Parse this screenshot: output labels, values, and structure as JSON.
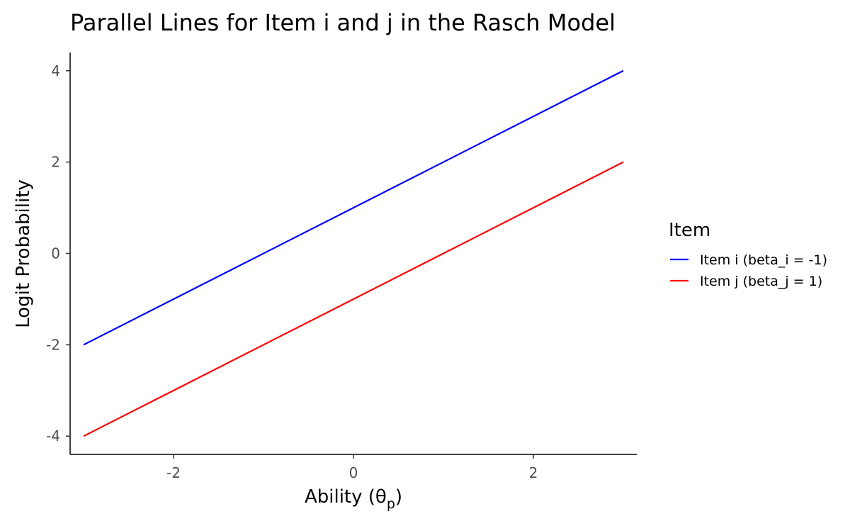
{
  "chart_data": {
    "type": "line",
    "title": "Parallel Lines for Item i and j in the Rasch Model",
    "xlabel": "Ability (θ",
    "xlabel_subscript": "p",
    "xlabel_close": ")",
    "ylabel": "Logit Probability",
    "xlim": [
      -3.15,
      3.15
    ],
    "ylim": [
      -4.4,
      4.4
    ],
    "x_ticks": [
      -2,
      0,
      2
    ],
    "y_ticks": [
      -4,
      -2,
      0,
      2,
      4
    ],
    "grid": false,
    "legend": {
      "title": "Item",
      "position": "right"
    },
    "series": [
      {
        "name": "Item i (beta_i = -1)",
        "color": "#0000ff",
        "x": [
          -3,
          3
        ],
        "y": [
          -2,
          4
        ]
      },
      {
        "name": "Item j (beta_j = 1)",
        "color": "#ff0000",
        "x": [
          -3,
          3
        ],
        "y": [
          -4,
          2
        ]
      }
    ]
  }
}
